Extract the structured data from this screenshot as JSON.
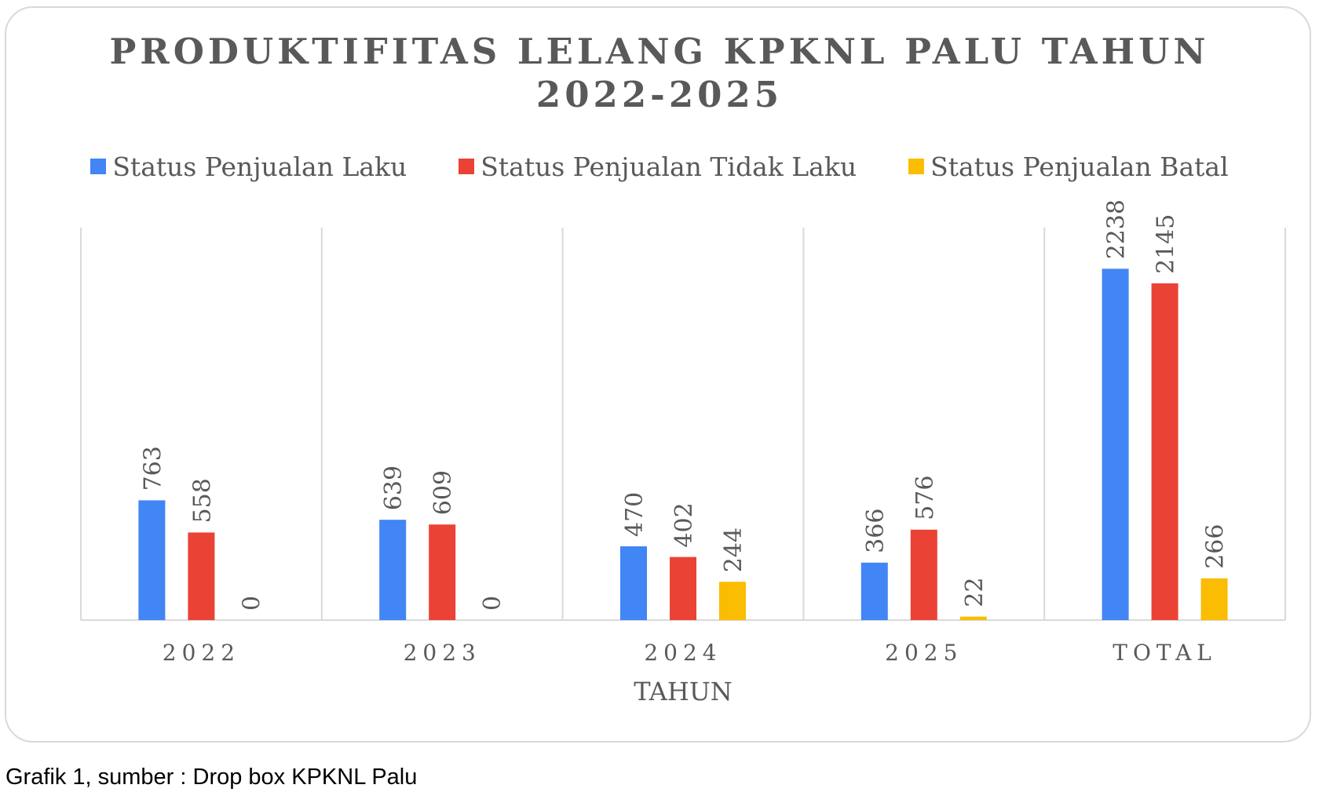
{
  "chart_data": {
    "type": "bar",
    "title_lines": [
      "PRODUKTIFITAS LELANG KPKNL PALU TAHUN",
      "2022-2025"
    ],
    "xlabel": "TAHUN",
    "ylabel": "",
    "categories": [
      "2022",
      "2023",
      "2024",
      "2025",
      "TOTAL"
    ],
    "series": [
      {
        "name": "Status Penjualan Laku",
        "color": "#4285f4",
        "values": [
          763,
          639,
          470,
          366,
          2238
        ]
      },
      {
        "name": "Status Penjualan Tidak Laku",
        "color": "#ea4335",
        "values": [
          558,
          609,
          402,
          576,
          2145
        ]
      },
      {
        "name": "Status Penjualan Batal",
        "color": "#fbbc04",
        "values": [
          0,
          0,
          244,
          22,
          266
        ]
      }
    ],
    "ylim": [
      0,
      2500
    ],
    "grid": "vertical category separators",
    "legend_position": "top",
    "data_labels": "rotated vertical above bars"
  },
  "caption": "Grafik 1, sumber : Drop box KPKNL Palu"
}
